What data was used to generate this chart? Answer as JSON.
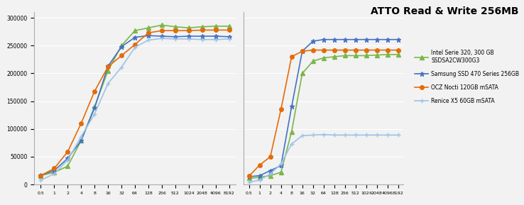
{
  "title": "ATTO Read & Write 256MB",
  "title_fontsize": 10,
  "x_labels": [
    "0.5",
    "1",
    "2",
    "4",
    "8",
    "16",
    "32",
    "64",
    "128",
    "256",
    "512",
    "1024",
    "2048",
    "4096",
    "8192"
  ],
  "ylim": [
    0,
    310000
  ],
  "yticks": [
    0,
    50000,
    100000,
    150000,
    200000,
    250000,
    300000
  ],
  "series": [
    {
      "name": "Intel Serie 320, 300 GB\nSSDSA2CW300G3",
      "color": "#7AB648",
      "marker": "^",
      "markersize": 4,
      "linewidth": 1.2,
      "read": [
        16000,
        22000,
        33000,
        79000,
        140000,
        205000,
        250000,
        277000,
        282000,
        287000,
        284000,
        282000,
        284000,
        285000,
        285000
      ],
      "write": [
        11000,
        13000,
        16000,
        22000,
        95000,
        200000,
        222000,
        228000,
        230000,
        232000,
        232000,
        232000,
        233000,
        234000,
        234000
      ]
    },
    {
      "name": "Samsung SSD 470 Series 256GB",
      "color": "#4472C4",
      "marker": "*",
      "markersize": 5,
      "linewidth": 1.2,
      "read": [
        17000,
        25000,
        47000,
        79000,
        138000,
        213000,
        248000,
        265000,
        268000,
        267000,
        266000,
        267000,
        267000,
        267000,
        266000
      ],
      "write": [
        14000,
        16000,
        25000,
        34000,
        140000,
        240000,
        258000,
        261000,
        261000,
        261000,
        261000,
        261000,
        261000,
        261000,
        261000
      ]
    },
    {
      "name": "OCZ Nocti 120GB mSATA",
      "color": "#E36C09",
      "marker": "o",
      "markersize": 4,
      "linewidth": 1.2,
      "read": [
        16000,
        29000,
        59000,
        110000,
        168000,
        212000,
        232000,
        252000,
        273000,
        277000,
        277000,
        277000,
        278000,
        278000,
        278000
      ],
      "write": [
        15000,
        35000,
        50000,
        135000,
        230000,
        240000,
        242000,
        242000,
        242000,
        242000,
        242000,
        242000,
        242000,
        242000,
        242000
      ]
    },
    {
      "name": "Renice X5 60GB mSATA",
      "color": "#9DC3E6",
      "marker": "+",
      "markersize": 5,
      "linewidth": 1.2,
      "read": [
        8000,
        19000,
        44000,
        86000,
        127000,
        182000,
        211000,
        247000,
        260000,
        263000,
        262000,
        262000,
        261000,
        261000,
        262000
      ],
      "write": [
        4000,
        8000,
        19000,
        37000,
        73000,
        88000,
        89000,
        90000,
        89000,
        89000,
        89000,
        89000,
        89000,
        89000,
        89000
      ]
    }
  ],
  "bg_color": "#F2F2F2",
  "plot_bg_color": "#F2F2F2",
  "grid_color": "#FFFFFF"
}
